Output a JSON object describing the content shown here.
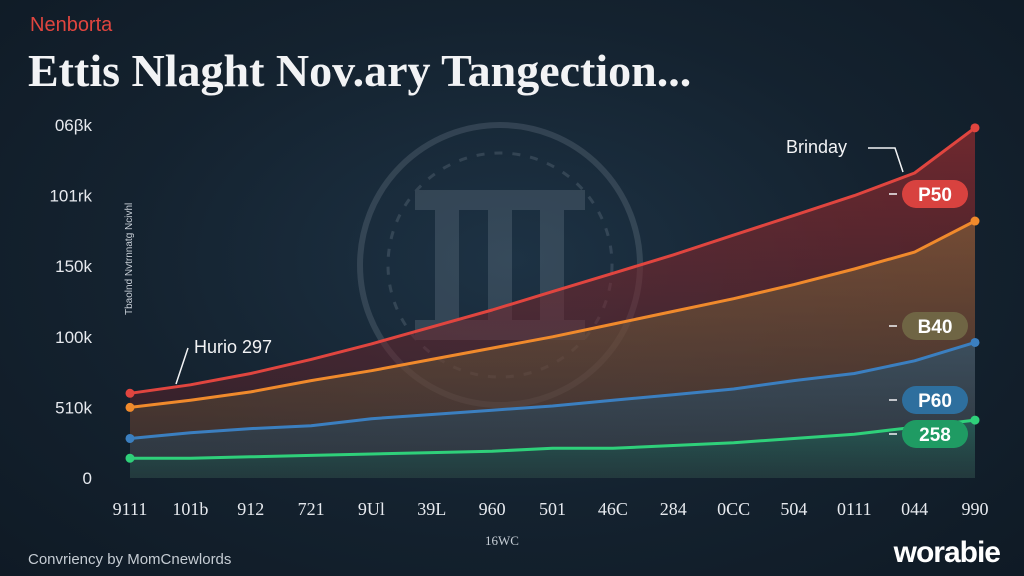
{
  "kicker": "Nenborta",
  "title": "Ettis Nlaght Nov.ary Tangection...",
  "footer": {
    "credit": "Convriency by MomCnewlords",
    "logo": "worabie"
  },
  "chart_data": {
    "type": "area",
    "title": "Ettis Nlaght Nov.ary Tangection...",
    "xlabel": "16WC",
    "ylabel": "Tbaolnd Nvtrnnatg Ncivhl",
    "y_ticks": [
      "0",
      "510k",
      "100k",
      "150k",
      "101rk",
      "06βk"
    ],
    "y_tick_values": [
      0,
      50,
      100,
      150,
      200,
      250
    ],
    "ylim": [
      0,
      250
    ],
    "x_ticks": [
      "9111",
      "101b",
      "912",
      "721",
      "9Ul",
      "39L",
      "960",
      "501",
      "46C",
      "284",
      "0CC",
      "504",
      "0111",
      "044",
      "990"
    ],
    "grid": false,
    "series": [
      {
        "name": "P50",
        "color": "#e0453f",
        "values": [
          60,
          66,
          74,
          84,
          95,
          107,
          119,
          132,
          145,
          158,
          172,
          186,
          200,
          216,
          248
        ]
      },
      {
        "name": "B40",
        "color": "#f08a2c",
        "values": [
          50,
          55,
          61,
          69,
          76,
          84,
          92,
          100,
          109,
          118,
          127,
          137,
          148,
          160,
          182
        ]
      },
      {
        "name": "P60",
        "color": "#3b7fc0",
        "values": [
          28,
          32,
          35,
          37,
          42,
          45,
          48,
          51,
          55,
          59,
          63,
          69,
          74,
          83,
          96
        ]
      },
      {
        "name": "258",
        "color": "#2fd07a",
        "values": [
          14,
          14,
          15,
          16,
          17,
          18,
          19,
          21,
          21,
          23,
          25,
          28,
          31,
          36,
          41
        ]
      }
    ],
    "annotations": [
      "Hurio 297",
      "Brinday"
    ],
    "legend": "right"
  }
}
